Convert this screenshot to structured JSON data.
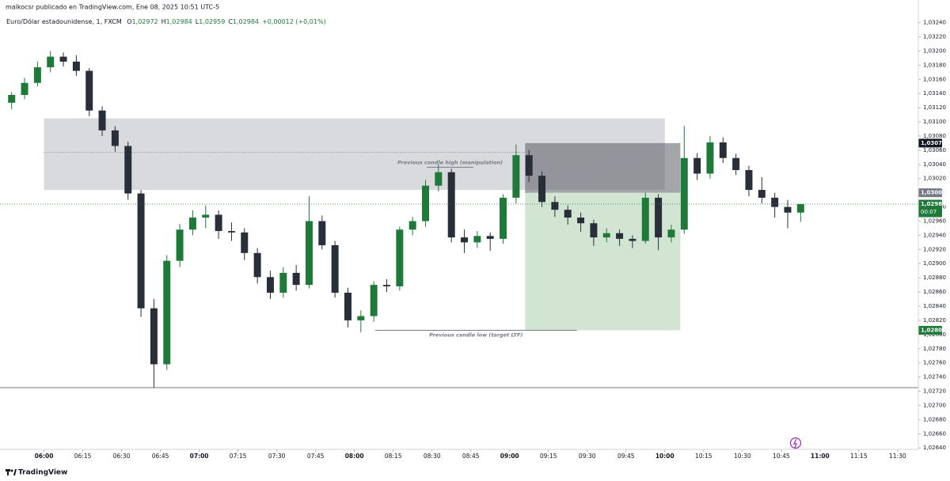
{
  "chart_data": {
    "type": "candlestick",
    "author_line": "malkocsr publicado en TradingView.com, Ene 08, 2025 10:51 UTC-5",
    "symbol": "Euro/Dólar estadounidense, 1, FXCM",
    "ohlc_keys": [
      "O",
      "H",
      "L",
      "C"
    ],
    "ohlc_values": [
      "1,02972",
      "1,02984",
      "1,02959",
      "1,02984"
    ],
    "change": "+0,00012 (+0,01%)",
    "brand": "TradingView",
    "bull_color": "#1f7a3a",
    "bear_color": "#2a2e39",
    "x": [
      "05:45",
      "05:50",
      "05:55",
      "06:00",
      "06:05",
      "06:10",
      "06:15",
      "06:20",
      "06:25",
      "06:30",
      "06:35",
      "06:40",
      "06:45",
      "06:50",
      "06:55",
      "07:00",
      "07:05",
      "07:10",
      "07:15",
      "07:20",
      "07:25",
      "07:30",
      "07:35",
      "07:40",
      "07:45",
      "07:50",
      "07:55",
      "08:00",
      "08:05",
      "08:10",
      "08:15",
      "08:20",
      "08:25",
      "08:30",
      "08:35",
      "08:40",
      "08:45",
      "08:50",
      "08:55",
      "09:00",
      "09:05",
      "09:10",
      "09:15",
      "09:20",
      "09:25",
      "09:30",
      "09:35",
      "09:40",
      "09:45",
      "09:50",
      "09:55",
      "10:00",
      "10:05",
      "10:10",
      "10:15",
      "10:20",
      "10:25",
      "10:30",
      "10:35",
      "10:40",
      "10:45",
      "10:50"
    ],
    "open": [
      1.03127,
      1.03138,
      1.03155,
      1.03177,
      1.03192,
      1.03185,
      1.03172,
      1.03116,
      1.03088,
      1.03066,
      1.02999,
      1.02837,
      1.02758,
      1.02904,
      1.02948,
      1.02965,
      1.02969,
      1.02946,
      1.02944,
      1.02915,
      1.02881,
      1.02859,
      1.02887,
      1.0287,
      1.0296,
      1.02926,
      1.02859,
      1.0282,
      1.02826,
      1.0287,
      1.02868,
      1.02948,
      1.0296,
      1.0301,
      1.03029,
      1.02937,
      1.0293,
      1.02939,
      1.02935,
      1.02993,
      1.03053,
      1.03024,
      1.02987,
      1.02976,
      1.02965,
      1.02957,
      1.02937,
      1.02943,
      1.02935,
      1.02932,
      1.02993,
      1.02937,
      1.02948,
      1.03049,
      1.03027,
      1.03071,
      1.03049,
      1.03032,
      1.03004,
      1.02993,
      1.0298,
      1.02972
    ],
    "high": [
      1.03142,
      1.03162,
      1.03185,
      1.032,
      1.03198,
      1.03194,
      1.03176,
      1.03122,
      1.03094,
      1.03072,
      1.03004,
      1.0285,
      1.02912,
      1.02956,
      1.02975,
      1.02982,
      1.02975,
      1.02958,
      1.0295,
      1.02922,
      1.0289,
      1.02895,
      1.02898,
      1.02995,
      1.02968,
      1.02932,
      1.02866,
      1.02834,
      1.02875,
      1.02878,
      1.02952,
      1.02966,
      1.03018,
      1.0304,
      1.03034,
      1.02948,
      1.02946,
      1.02944,
      1.02998,
      1.03068,
      1.0306,
      1.0303,
      1.02995,
      1.02982,
      1.02972,
      1.02962,
      1.0295,
      1.02948,
      1.0294,
      1.03,
      1.02998,
      1.02955,
      1.03094,
      1.03056,
      1.0308,
      1.03078,
      1.03055,
      1.03038,
      1.03022,
      1.03,
      1.0299,
      1.02984
    ],
    "low": [
      1.03118,
      1.03132,
      1.0315,
      1.0317,
      1.03178,
      1.03165,
      1.03108,
      1.0308,
      1.03058,
      1.0299,
      1.02825,
      1.02725,
      1.0275,
      1.02895,
      1.0294,
      1.0295,
      1.02935,
      1.02932,
      1.02905,
      1.02872,
      1.0285,
      1.02852,
      1.02862,
      1.02865,
      1.0292,
      1.02852,
      1.0281,
      1.02803,
      1.02818,
      1.0286,
      1.02862,
      1.0294,
      1.02952,
      1.03002,
      1.0293,
      1.02915,
      1.02922,
      1.02918,
      1.02928,
      1.02985,
      1.03015,
      1.0298,
      1.02966,
      1.02955,
      1.02945,
      1.02925,
      1.0293,
      1.02925,
      1.02922,
      1.02928,
      1.02919,
      1.0293,
      1.02942,
      1.03018,
      1.0302,
      1.03042,
      1.03025,
      1.02995,
      1.02985,
      1.02965,
      1.0295,
      1.02959
    ],
    "close": [
      1.03138,
      1.03155,
      1.03177,
      1.03192,
      1.03185,
      1.03172,
      1.03116,
      1.03088,
      1.03066,
      1.02999,
      1.02837,
      1.02758,
      1.02904,
      1.02948,
      1.02965,
      1.02969,
      1.02946,
      1.02944,
      1.02915,
      1.02881,
      1.02859,
      1.02887,
      1.0287,
      1.0296,
      1.02926,
      1.02859,
      1.0282,
      1.02826,
      1.0287,
      1.02868,
      1.02948,
      1.0296,
      1.0301,
      1.03029,
      1.02937,
      1.0293,
      1.02939,
      1.02935,
      1.02993,
      1.03053,
      1.03024,
      1.02987,
      1.02976,
      1.02965,
      1.02957,
      1.02937,
      1.02943,
      1.02935,
      1.02932,
      1.02993,
      1.02937,
      1.02948,
      1.03049,
      1.03027,
      1.03071,
      1.03049,
      1.03032,
      1.03004,
      1.02993,
      1.0298,
      1.02972,
      1.02984
    ],
    "xlim": [
      "05:43",
      "11:38"
    ],
    "ylim": [
      1.02638,
      1.03263
    ],
    "xticks": [
      "06:00",
      "06:15",
      "06:30",
      "06:45",
      "07:00",
      "07:15",
      "07:30",
      "07:45",
      "08:00",
      "08:15",
      "08:30",
      "08:45",
      "09:00",
      "09:15",
      "09:30",
      "09:45",
      "10:00",
      "10:15",
      "10:30",
      "10:45",
      "11:00",
      "11:15",
      "11:30"
    ],
    "yticks": [
      {
        "value": 1.0264,
        "label": "1,02640"
      },
      {
        "value": 1.0266,
        "label": "1,02660"
      },
      {
        "value": 1.0268,
        "label": "1,02680"
      },
      {
        "value": 1.027,
        "label": "1,02700"
      },
      {
        "value": 1.0272,
        "label": "1,02720"
      },
      {
        "value": 1.0274,
        "label": "1,02740"
      },
      {
        "value": 1.0276,
        "label": "1,02760"
      },
      {
        "value": 1.0278,
        "label": "1,02780"
      },
      {
        "value": 1.028,
        "label": "1,02800"
      },
      {
        "value": 1.0282,
        "label": "1,02820"
      },
      {
        "value": 1.0284,
        "label": "1,02840"
      },
      {
        "value": 1.0286,
        "label": "1,02860"
      },
      {
        "value": 1.0288,
        "label": "1,02880"
      },
      {
        "value": 1.029,
        "label": "1,02900"
      },
      {
        "value": 1.0292,
        "label": "1,02920"
      },
      {
        "value": 1.0294,
        "label": "1,02940"
      },
      {
        "value": 1.0296,
        "label": "1,02960"
      },
      {
        "value": 1.0298,
        "label": "1,02980"
      },
      {
        "value": 1.03,
        "label": "1,03000"
      },
      {
        "value": 1.0302,
        "label": "1,03020"
      },
      {
        "value": 1.0304,
        "label": "1,03040"
      },
      {
        "value": 1.0306,
        "label": "1,03060"
      },
      {
        "value": 1.0308,
        "label": "1,03080"
      },
      {
        "value": 1.031,
        "label": "1,03100"
      },
      {
        "value": 1.0312,
        "label": "1,03120"
      },
      {
        "value": 1.0314,
        "label": "1,03140"
      },
      {
        "value": 1.0316,
        "label": "1,03160"
      },
      {
        "value": 1.0318,
        "label": "1,03180"
      },
      {
        "value": 1.032,
        "label": "1,03200"
      },
      {
        "value": 1.0322,
        "label": "1,03220"
      },
      {
        "value": 1.0324,
        "label": "1,03240"
      }
    ],
    "drawings": {
      "zone": {
        "x": [
          "06:00",
          "10:00"
        ],
        "y": [
          1.03004,
          1.03105
        ],
        "color": "rgba(120,123,134,0.28)"
      },
      "position": {
        "x": [
          "09:06",
          "10:06"
        ],
        "entry": 1.03,
        "stop": 1.0307,
        "target": 1.02806,
        "stop_color": "rgba(90,92,100,0.55)",
        "target_color": "rgba(76,150,80,0.25)"
      },
      "dotted_level": {
        "x": [
          "06:00",
          "09:06"
        ],
        "y": 1.03057
      },
      "horizontal_line": 1.02725,
      "annotations": [
        {
          "text": "Previous candle high (manipulation)",
          "x": [
            "08:28",
            "08:46"
          ],
          "y": 1.03036,
          "label_position": "above"
        },
        {
          "text": "Previous candle low (target LTF)",
          "x": [
            "08:08",
            "09:26"
          ],
          "y": 1.02806,
          "label_position": "below"
        }
      ]
    },
    "price_badges": [
      {
        "value": 1.0307,
        "label": "1,03070",
        "color": "#131722"
      },
      {
        "value": 1.03,
        "label": "1,03000",
        "color": "#787b86"
      },
      {
        "value": 1.02984,
        "label": "1,02984",
        "sub": "00:07",
        "color": "#1f7a3a"
      },
      {
        "value": 1.02806,
        "label": "1,02806",
        "color": "#1f7a3a"
      }
    ]
  }
}
